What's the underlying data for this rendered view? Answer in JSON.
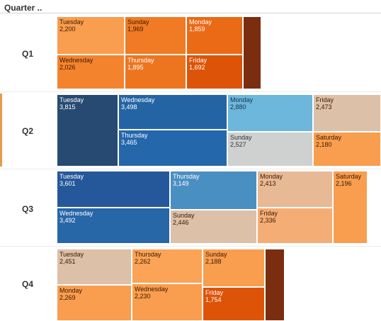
{
  "header": {
    "column_label": "Quarter .."
  },
  "chart_data": {
    "type": "treemap",
    "rows": [
      {
        "label": "Q1",
        "tiles": [
          {
            "day": "Tuesday",
            "value": 2200,
            "value_label": "2,200",
            "color": "#f99d4e",
            "text_color": "#3a1a00"
          },
          {
            "day": "Wednesday",
            "value": 2026,
            "value_label": "2,026",
            "color": "#f4832e",
            "text_color": "#3a1a00"
          },
          {
            "day": "Sunday",
            "value": 1969,
            "value_label": "1,969",
            "color": "#f07b24",
            "text_color": "#3a1a00"
          },
          {
            "day": "Thursday",
            "value": 1895,
            "value_label": "1,895",
            "color": "#ee7520",
            "text_color": "#ffffff"
          },
          {
            "day": "Monday",
            "value": 1859,
            "value_label": "1,859",
            "color": "#ea6a16",
            "text_color": "#ffffff"
          },
          {
            "day": "Friday",
            "value": 1692,
            "value_label": "1,692",
            "color": "#dd5408",
            "text_color": "#ffffff"
          },
          {
            "day": "",
            "value": null,
            "value_label": "",
            "color": "#7b2e0f",
            "text_color": "#ffffff"
          }
        ]
      },
      {
        "label": "Q2",
        "tiles": [
          {
            "day": "Tuesday",
            "value": 3815,
            "value_label": "3,815",
            "color": "#274a72",
            "text_color": "#ffffff"
          },
          {
            "day": "Wednesday",
            "value": 3498,
            "value_label": "3,498",
            "color": "#2464a5",
            "text_color": "#ffffff"
          },
          {
            "day": "Thursday",
            "value": 3465,
            "value_label": "3,465",
            "color": "#2467ab",
            "text_color": "#ffffff"
          },
          {
            "day": "Monday",
            "value": 2880,
            "value_label": "2,880",
            "color": "#6db6dc",
            "text_color": "#14314a"
          },
          {
            "day": "Sunday",
            "value": 2527,
            "value_label": "2,527",
            "color": "#cfd0d0",
            "text_color": "#333333"
          },
          {
            "day": "Friday",
            "value": 2473,
            "value_label": "2,473",
            "color": "#dcc0a8",
            "text_color": "#3a1a00"
          },
          {
            "day": "Saturday",
            "value": 2180,
            "value_label": "2,180",
            "color": "#f99d4e",
            "text_color": "#3a1a00"
          }
        ]
      },
      {
        "label": "Q3",
        "tiles": [
          {
            "day": "Tuesday",
            "value": 3601,
            "value_label": "3,601",
            "color": "#25589a",
            "text_color": "#ffffff"
          },
          {
            "day": "Wednesday",
            "value": 3492,
            "value_label": "3,492",
            "color": "#2766a7",
            "text_color": "#ffffff"
          },
          {
            "day": "Thursday",
            "value": 3149,
            "value_label": "3,149",
            "color": "#4a8fc2",
            "text_color": "#ffffff"
          },
          {
            "day": "Sunday",
            "value": 2446,
            "value_label": "2,446",
            "color": "#dcc0a8",
            "text_color": "#3a1a00"
          },
          {
            "day": "Monday",
            "value": 2413,
            "value_label": "2,413",
            "color": "#e8b995",
            "text_color": "#3a1a00"
          },
          {
            "day": "Friday",
            "value": 2336,
            "value_label": "2,336",
            "color": "#f5ad76",
            "text_color": "#3a1a00"
          },
          {
            "day": "Saturday",
            "value": 2196,
            "value_label": "2,196",
            "color": "#f99d4e",
            "text_color": "#3a1a00"
          }
        ]
      },
      {
        "label": "Q4",
        "tiles": [
          {
            "day": "Tuesday",
            "value": 2451,
            "value_label": "2,451",
            "color": "#dcc0a8",
            "text_color": "#3a1a00"
          },
          {
            "day": "Monday",
            "value": 2269,
            "value_label": "2,269",
            "color": "#f99d4e",
            "text_color": "#3a1a00"
          },
          {
            "day": "Thursday",
            "value": 2262,
            "value_label": "2,262",
            "color": "#fba356",
            "text_color": "#3a1a00"
          },
          {
            "day": "Wednesday",
            "value": 2230,
            "value_label": "2,230",
            "color": "#f99d4e",
            "text_color": "#3a1a00"
          },
          {
            "day": "Sunday",
            "value": 2188,
            "value_label": "2,188",
            "color": "#f99d4e",
            "text_color": "#3a1a00"
          },
          {
            "day": "Friday",
            "value": 1754,
            "value_label": "1,754",
            "color": "#dd5408",
            "text_color": "#ffffff"
          },
          {
            "day": "",
            "value": null,
            "value_label": "",
            "color": "#7b2e0f",
            "text_color": "#ffffff"
          }
        ]
      }
    ]
  }
}
